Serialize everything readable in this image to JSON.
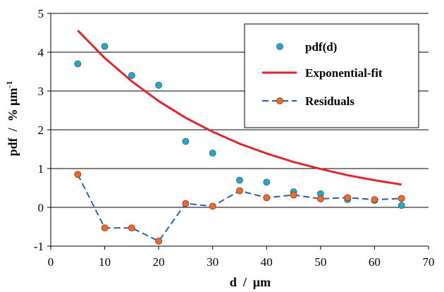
{
  "chart_data": {
    "type": "scatter",
    "xlim": [
      0,
      70
    ],
    "ylim": [
      -1,
      5
    ],
    "x_ticks": [
      0,
      10,
      20,
      30,
      40,
      50,
      60,
      70
    ],
    "y_ticks": [
      -1,
      0,
      1,
      2,
      3,
      4,
      5
    ],
    "xlabel": {
      "main": "d",
      "sep": "/",
      "unit": "μm"
    },
    "ylabel": {
      "main": "pdf",
      "sep": "/",
      "unit": "% μm",
      "exp": "-1"
    },
    "grid": {
      "horizontal": true,
      "vertical": false
    },
    "legend_position": "top-right",
    "series": [
      {
        "name": "pdf(d)",
        "kind": "markers",
        "color": "#2aa7c6",
        "points": [
          [
            5,
            3.7
          ],
          [
            10,
            4.15
          ],
          [
            15,
            3.4
          ],
          [
            20,
            3.15
          ],
          [
            25,
            1.7
          ],
          [
            30,
            1.4
          ],
          [
            35,
            0.7
          ],
          [
            40,
            0.65
          ],
          [
            45,
            0.4
          ],
          [
            50,
            0.35
          ],
          [
            55,
            0.2
          ],
          [
            60,
            0.18
          ],
          [
            65,
            0.05
          ]
        ]
      },
      {
        "name": "Exponential-fit",
        "kind": "line",
        "color": "#e3262b",
        "points": [
          [
            5,
            4.56
          ],
          [
            10,
            3.85
          ],
          [
            15,
            3.25
          ],
          [
            20,
            2.74
          ],
          [
            25,
            2.31
          ],
          [
            30,
            1.95
          ],
          [
            35,
            1.64
          ],
          [
            40,
            1.39
          ],
          [
            45,
            1.17
          ],
          [
            50,
            0.99
          ],
          [
            55,
            0.83
          ],
          [
            60,
            0.7
          ],
          [
            65,
            0.59
          ]
        ]
      },
      {
        "name": "Residuals",
        "kind": "dashed-line-markers",
        "color": "#2f5ea8",
        "marker_color": "#ef6a2c",
        "points": [
          [
            5,
            0.85
          ],
          [
            10,
            -0.53
          ],
          [
            15,
            -0.53
          ],
          [
            20,
            -0.87
          ],
          [
            25,
            0.1
          ],
          [
            30,
            0.03
          ],
          [
            35,
            0.43
          ],
          [
            40,
            0.25
          ],
          [
            45,
            0.32
          ],
          [
            50,
            0.22
          ],
          [
            55,
            0.25
          ],
          [
            60,
            0.2
          ],
          [
            65,
            0.23
          ]
        ]
      }
    ]
  }
}
